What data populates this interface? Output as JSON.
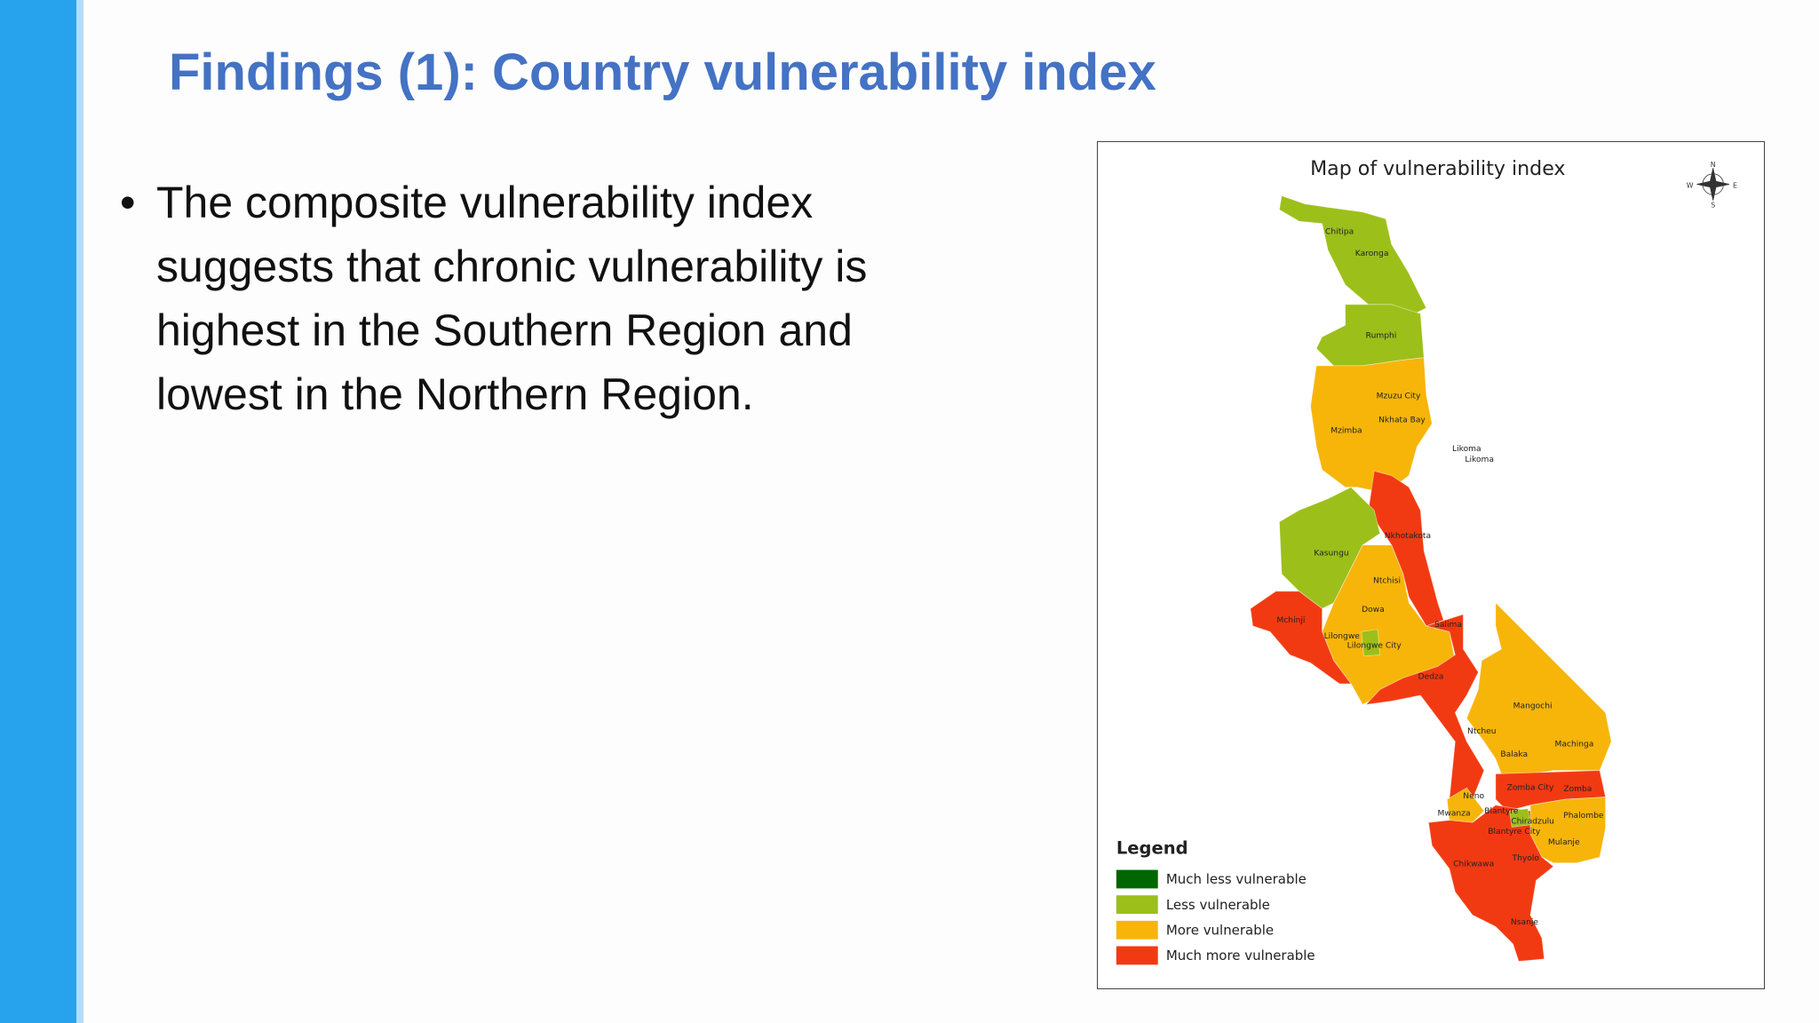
{
  "header": {
    "title": "Findings (1): Country vulnerability index"
  },
  "body": {
    "bullets": [
      "The composite vulnerability index suggests that chronic vulnerability is highest in the Southern Region and lowest in the Northern Region."
    ]
  },
  "map": {
    "title": "Map of vulnerability index",
    "compass": [
      "N",
      "S",
      "W",
      "E"
    ],
    "legend_title": "Legend",
    "legend": [
      {
        "label": "Much less vulnerable",
        "color": "#006600"
      },
      {
        "label": "Less vulnerable",
        "color": "#9dbf1a"
      },
      {
        "label": "More vulnerable",
        "color": "#f7b50a"
      },
      {
        "label": "Much more vulnerable",
        "color": "#f23a12"
      }
    ],
    "districts": [
      "Chitipa",
      "Karonga",
      "Rumphi",
      "Mzuzu City",
      "Nkhata Bay",
      "Mzimba",
      "Likoma",
      "Likoma",
      "Nkhotakota",
      "Kasungu",
      "Ntchisi",
      "Dowa",
      "Mchinji",
      "Salima",
      "Lilongwe",
      "Lilongwe City",
      "Dedza",
      "Mangochi",
      "Ntcheu",
      "Machinga",
      "Balaka",
      "Zomba City",
      "Zomba",
      "Neno",
      "Mwanza",
      "Blantyre",
      "Phalombe",
      "Chiradzulu",
      "Blantyre City",
      "Mulanje",
      "Thyolo",
      "Chikwawa",
      "Nsanje"
    ]
  }
}
